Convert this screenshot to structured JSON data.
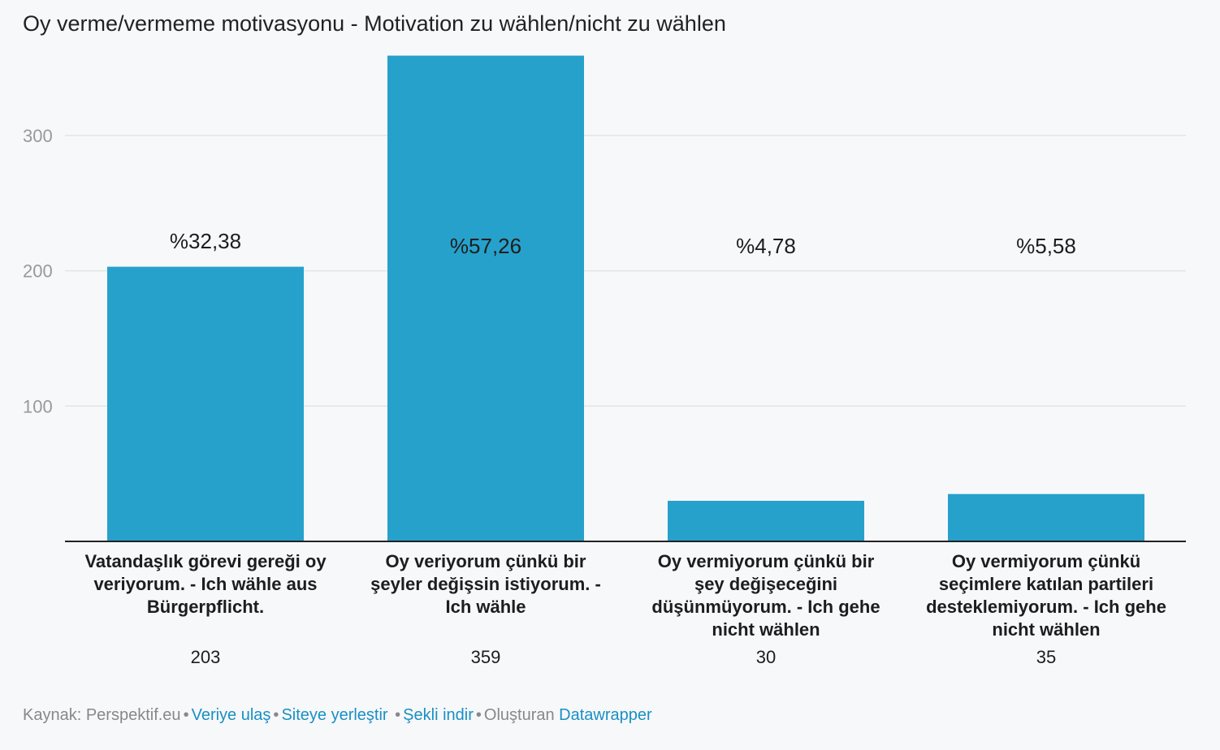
{
  "title": "Oy verme/vermeme motivasyonu - Motivation zu wählen/nicht zu wählen",
  "chart_data": {
    "type": "bar",
    "categories": [
      "Vatandaşlık görevi gereği oy veriyorum. - Ich wähle aus Bürgerpflicht.",
      "Oy veriyorum çünkü bir şeyler değişsin istiyorum. - Ich wähle",
      "Oy vermiyorum çünkü bir şey değişeceğini düşünmüyorum. - Ich gehe nicht wählen",
      "Oy vermiyorum çünkü seçimlere katılan partileri desteklemiyorum. - Ich gehe nicht wählen"
    ],
    "category_lines": [
      [
        "Vatandaşlık görevi gereği oy",
        "veriyorum. - Ich wähle aus",
        "Bürgerpflicht."
      ],
      [
        "Oy veriyorum çünkü bir",
        "şeyler değişsin istiyorum. -",
        "Ich wähle"
      ],
      [
        "Oy vermiyorum çünkü bir",
        "şey değişeceğini",
        "düşünmüyorum. - Ich gehe",
        "nicht wählen"
      ],
      [
        "Oy vermiyorum çünkü",
        "seçimlere katılan partileri",
        "desteklemiyorum. - Ich gehe",
        "nicht wählen"
      ]
    ],
    "values": [
      203,
      359,
      30,
      35
    ],
    "value_labels": [
      "203",
      "359",
      "30",
      "35"
    ],
    "percent_labels": [
      "%32,38",
      "%57,26",
      "%4,78",
      "%5,58"
    ],
    "yticks": [
      100,
      200,
      300
    ],
    "ytick_labels": [
      "100",
      "200",
      "300"
    ],
    "ylim": [
      0,
      359
    ],
    "grid": true,
    "bar_color": "#26a1cb",
    "grid_color": "#e4e4e4",
    "xlabel": "",
    "ylabel": ""
  },
  "footer": {
    "source": "Kaynak: Perspektif.eu",
    "data_link": "Veriye ulaş",
    "embed_link": "Siteye yerleştir",
    "download_link": "Şekli indir",
    "created_with": "Oluşturan",
    "tool_link": "Datawrapper",
    "separator": "•",
    "link_color": "#1a8fc4"
  }
}
